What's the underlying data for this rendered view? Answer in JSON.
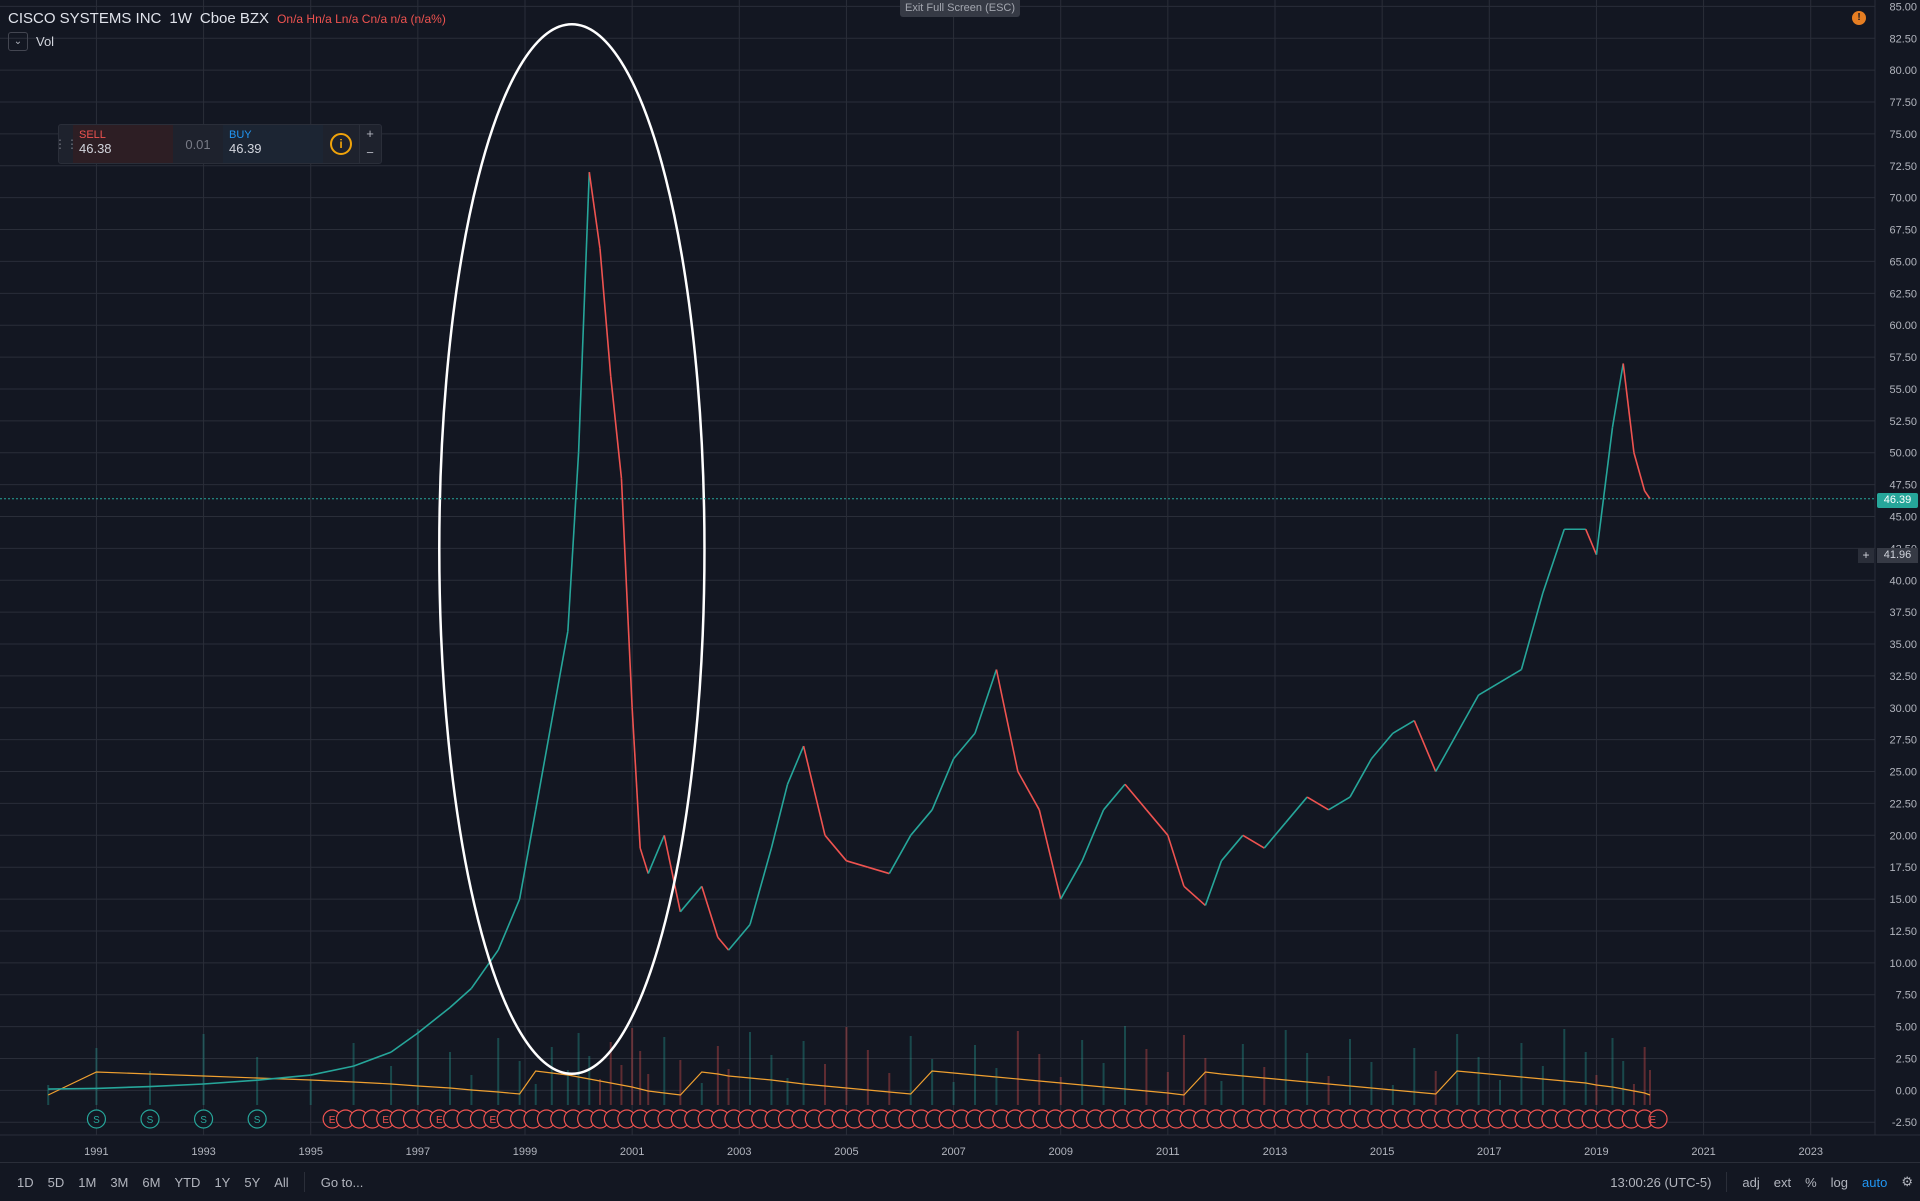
{
  "header": {
    "symbol": "CISCO SYSTEMS INC",
    "interval": "1W",
    "exchange": "Cboe BZX",
    "ohlc": "On/a  Hn/a  Ln/a  Cn/a  n/a (n/a%)",
    "volume_label": "Vol",
    "exit_fullscreen": "Exit Full Screen (ESC)",
    "alert_badge": "!"
  },
  "trade_panel": {
    "sell_label": "SELL",
    "sell_price": "46.38",
    "spread": "0.01",
    "buy_label": "BUY",
    "buy_price": "46.39",
    "info_icon": "i",
    "plus": "+",
    "minus": "−"
  },
  "price_axis": {
    "current_price": "46.39",
    "crosshair_price": "41.96",
    "crosshair_plus": "+"
  },
  "bottom_toolbar": {
    "ranges": [
      "1D",
      "5D",
      "1M",
      "3M",
      "6M",
      "YTD",
      "1Y",
      "5Y",
      "All"
    ],
    "goto": "Go to...",
    "time": "13:00:26 (UTC-5)",
    "toggles": [
      "adj",
      "ext",
      "%",
      "log",
      "auto"
    ]
  },
  "colors": {
    "background": "#131722",
    "up": "#26a69a",
    "down": "#ef5350",
    "ma": "#f0a030",
    "grid": "#2a2e39",
    "annotation": "#ffffff"
  },
  "chart_data": {
    "type": "line",
    "title": "",
    "xlabel": "",
    "ylabel": "",
    "ylim": [
      -3.5,
      85.5
    ],
    "xlim": [
      1989.2,
      2024.2
    ],
    "yticks": [
      "85.00",
      "82.50",
      "80.00",
      "77.50",
      "75.00",
      "72.50",
      "70.00",
      "67.50",
      "65.00",
      "62.50",
      "60.00",
      "57.50",
      "55.00",
      "52.50",
      "50.00",
      "47.50",
      "45.00",
      "42.50",
      "40.00",
      "37.50",
      "35.00",
      "32.50",
      "30.00",
      "27.50",
      "25.00",
      "22.50",
      "20.00",
      "17.50",
      "15.00",
      "12.50",
      "10.00",
      "7.50",
      "5.00",
      "2.50",
      "0.00",
      "-2.50"
    ],
    "xticks": [
      "1991",
      "1993",
      "1995",
      "1997",
      "1999",
      "2001",
      "2003",
      "2005",
      "2007",
      "2009",
      "2011",
      "2013",
      "2015",
      "2017",
      "2019",
      "2021",
      "2023"
    ],
    "series": [
      {
        "x": [
          1990.1,
          1991.0,
          1992.0,
          1993.0,
          1994.0,
          1995.0,
          1995.8,
          1996.5,
          1997.0,
          1997.6,
          1998.0,
          1998.5,
          1998.9,
          1999.2,
          1999.5,
          1999.8,
          2000.0,
          2000.2,
          2000.4,
          2000.6,
          2000.8,
          2001.0,
          2001.15,
          2001.3,
          2001.6,
          2001.9,
          2002.3,
          2002.6,
          2002.8,
          2003.2,
          2003.6,
          2003.9,
          2004.2,
          2004.6,
          2005.0,
          2005.4,
          2005.8,
          2006.2,
          2006.6,
          2007.0,
          2007.4,
          2007.8,
          2008.2,
          2008.6,
          2009.0,
          2009.4,
          2009.8,
          2010.2,
          2010.6,
          2011.0,
          2011.3,
          2011.7,
          2012.0,
          2012.4,
          2012.8,
          2013.2,
          2013.6,
          2014.0,
          2014.4,
          2014.8,
          2015.2,
          2015.6,
          2016.0,
          2016.4,
          2016.8,
          2017.2,
          2017.6,
          2018.0,
          2018.4,
          2018.8,
          2019.0,
          2019.3,
          2019.5,
          2019.7,
          2019.9,
          2020.0
        ],
        "values": [
          0.1,
          0.15,
          0.3,
          0.5,
          0.8,
          1.2,
          1.9,
          3.0,
          4.5,
          6.5,
          8.0,
          11.0,
          15.0,
          22.0,
          29.0,
          36.0,
          50.0,
          72.0,
          66.0,
          56.0,
          48.0,
          30.0,
          19.0,
          17.0,
          20.0,
          14.0,
          16.0,
          12.0,
          11.0,
          13.0,
          19.0,
          24.0,
          27.0,
          20.0,
          18.0,
          17.5,
          17.0,
          20.0,
          22.0,
          26.0,
          28.0,
          33.0,
          25.0,
          22.0,
          15.0,
          18.0,
          22.0,
          24.0,
          22.0,
          20.0,
          16.0,
          14.5,
          18.0,
          20.0,
          19.0,
          21.0,
          23.0,
          22.0,
          23.0,
          26.0,
          28.0,
          29.0,
          25.0,
          28.0,
          31.0,
          32.0,
          33.0,
          39.0,
          44.0,
          44.0,
          42.0,
          52.0,
          57.0,
          50.0,
          47.0,
          46.39
        ]
      }
    ],
    "markers": {
      "splits": [
        1991.0,
        1992.0,
        1993.0,
        1994.0
      ],
      "split_label": "S",
      "earnings_label": "E",
      "earnings_start": 1995.4,
      "earnings_end": 2020.15
    },
    "annotations": [
      {
        "shape": "ellipse",
        "color": "#ffffff",
        "note": ""
      }
    ]
  }
}
